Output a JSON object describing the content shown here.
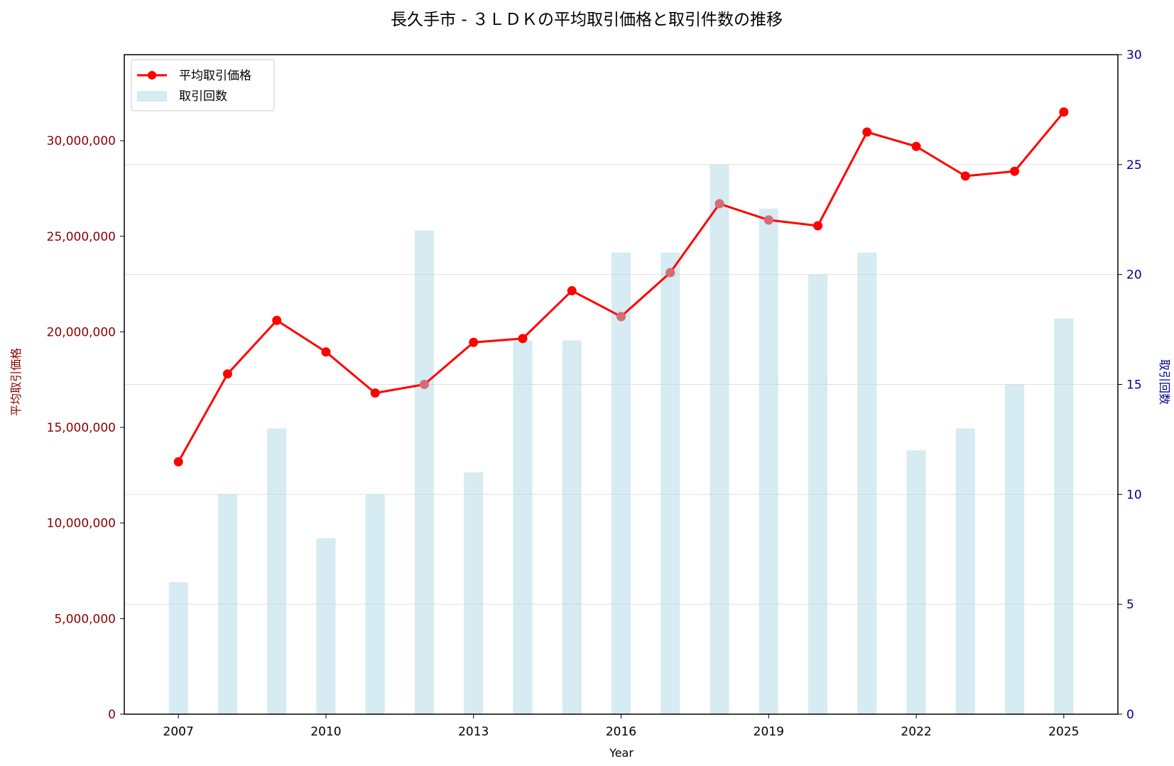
{
  "chart_data": {
    "type": "bar+line",
    "title": "長久手市 - ３ＬＤＫの平均取引価格と取引件数の推移",
    "xlabel": "Year",
    "ylabel_left": "平均取引価格",
    "ylabel_right": "取引回数",
    "x": [
      2007,
      2008,
      2009,
      2010,
      2011,
      2012,
      2013,
      2014,
      2015,
      2016,
      2017,
      2018,
      2019,
      2020,
      2021,
      2022,
      2023,
      2024,
      2025
    ],
    "x_ticks": [
      "2007",
      "2010",
      "2013",
      "2016",
      "2019",
      "2022",
      "2025"
    ],
    "xlim": [
      2005.9,
      2026.1
    ],
    "ylim_left": [
      0,
      34500000
    ],
    "ylim_right": [
      0,
      30
    ],
    "y_ticks_left": [
      "0",
      "5,000,000",
      "10,000,000",
      "15,000,000",
      "20,000,000",
      "25,000,000",
      "30,000,000"
    ],
    "y_ticks_right": [
      "0",
      "5",
      "10",
      "15",
      "20",
      "25",
      "30"
    ],
    "grid": "horizontal, right axis",
    "legend_position": "top-left",
    "series": [
      {
        "name": "平均取引価格",
        "type": "line",
        "axis": "left",
        "color": "#ff0000",
        "values": [
          13200000,
          17800000,
          20600000,
          18950000,
          16800000,
          17250000,
          19450000,
          19650000,
          22150000,
          20800000,
          23100000,
          26700000,
          25850000,
          25550000,
          30450000,
          29700000,
          28150000,
          28400000,
          31500000
        ]
      },
      {
        "name": "取引回数",
        "type": "bar",
        "axis": "right",
        "color": "#add8e6",
        "values": [
          6,
          10,
          13,
          8,
          10,
          22,
          11,
          17,
          17,
          21,
          21,
          25,
          23,
          20,
          21,
          12,
          13,
          15,
          18
        ]
      }
    ],
    "colors": {
      "left_axis": "#8b0000",
      "right_axis": "#00008b",
      "line": "#ff0000",
      "bar": "#add8e6"
    }
  }
}
